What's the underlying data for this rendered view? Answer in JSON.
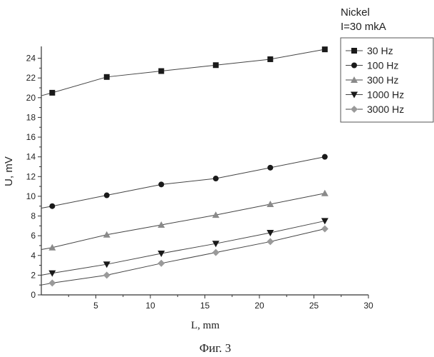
{
  "chart_data": {
    "type": "line",
    "annotation": [
      "Nickel",
      "I=30 mkA"
    ],
    "xlabel": "L, mm",
    "ylabel": "U, mV",
    "caption": "Фиг. 3",
    "xlim": [
      0,
      30
    ],
    "ylim": [
      0,
      25.2
    ],
    "xticks": [
      5,
      10,
      15,
      20,
      25,
      30
    ],
    "yticks": [
      0,
      2,
      4,
      6,
      8,
      10,
      12,
      14,
      16,
      18,
      20,
      22,
      24
    ],
    "grid": false,
    "legend_position": "top-right",
    "series": [
      {
        "name": "30 Hz",
        "marker": "square",
        "color": "#1a1a1a",
        "x": [
          1,
          6,
          11,
          16,
          21,
          26
        ],
        "y": [
          20.5,
          22.1,
          22.7,
          23.3,
          23.9,
          24.9
        ],
        "line_start": [
          0,
          20.2
        ]
      },
      {
        "name": "100 Hz",
        "marker": "circle",
        "color": "#1a1a1a",
        "x": [
          1,
          6,
          11,
          16,
          21,
          26
        ],
        "y": [
          9.0,
          10.1,
          11.2,
          11.8,
          12.9,
          14.0
        ],
        "line_start": [
          0,
          8.8
        ]
      },
      {
        "name": "300 Hz",
        "marker": "triangle-up",
        "color": "#8a8a8a",
        "x": [
          1,
          6,
          11,
          16,
          21,
          26
        ],
        "y": [
          4.8,
          6.1,
          7.1,
          8.1,
          9.2,
          10.3
        ],
        "line_start": [
          0,
          4.6
        ]
      },
      {
        "name": "1000 Hz",
        "marker": "triangle-down",
        "color": "#1a1a1a",
        "x": [
          1,
          6,
          11,
          16,
          21,
          26
        ],
        "y": [
          2.2,
          3.1,
          4.2,
          5.2,
          6.3,
          7.5
        ],
        "line_start": [
          0,
          2.0
        ]
      },
      {
        "name": "3000 Hz",
        "marker": "diamond",
        "color": "#9a9a9a",
        "x": [
          1,
          6,
          11,
          16,
          21,
          26
        ],
        "y": [
          1.2,
          2.0,
          3.2,
          4.3,
          5.4,
          6.7
        ],
        "line_start": [
          0,
          1.0
        ]
      }
    ]
  }
}
